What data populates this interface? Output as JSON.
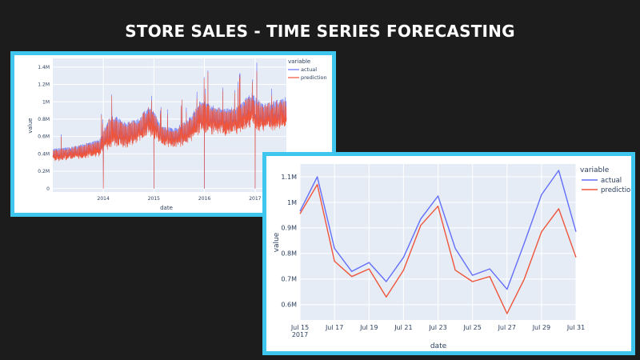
{
  "page": {
    "title": "STORE SALES - TIME SERIES FORECASTING"
  },
  "colors": {
    "background": "#1c1c1c",
    "frame": "#3ec6ef",
    "plot_bg": "#e5ecf6",
    "actual": "#636efa",
    "prediction": "#ef553b"
  },
  "chart_data": [
    {
      "type": "line",
      "xlabel": "date",
      "ylabel": "value",
      "x_range": [
        "2013-01-01",
        "2017-08-15"
      ],
      "ylim": [
        -40000,
        1500000
      ],
      "x_ticks": [
        {
          "value": "2014-01-01",
          "label": "2014"
        },
        {
          "value": "2015-01-01",
          "label": "2015"
        },
        {
          "value": "2016-01-01",
          "label": "2016"
        },
        {
          "value": "2017-01-01",
          "label": "2017"
        }
      ],
      "y_ticks": [
        {
          "value": 0,
          "label": "0"
        },
        {
          "value": 200000,
          "label": "0.2M"
        },
        {
          "value": 400000,
          "label": "0.4M"
        },
        {
          "value": 600000,
          "label": "0.6M"
        },
        {
          "value": 800000,
          "label": "0.8M"
        },
        {
          "value": 1000000,
          "label": "1M"
        },
        {
          "value": 1200000,
          "label": "1.2M"
        },
        {
          "value": 1400000,
          "label": "1.4M"
        }
      ],
      "grid": true,
      "legend": {
        "title": "variable",
        "position": "right"
      },
      "series": [
        {
          "name": "actual",
          "color": "#636efa"
        },
        {
          "name": "prediction",
          "color": "#ef553b"
        }
      ],
      "trend": {
        "x": [
          "2013-01-01",
          "2013-06-01",
          "2013-12-01",
          "2014-03-01",
          "2014-06-01",
          "2014-09-01",
          "2014-12-01",
          "2015-03-01",
          "2015-06-01",
          "2015-09-01",
          "2015-12-01",
          "2016-03-01",
          "2016-06-01",
          "2016-09-01",
          "2016-12-01",
          "2017-03-01",
          "2017-06-01",
          "2017-08-15"
        ],
        "low": [
          300000,
          320000,
          360000,
          430000,
          420000,
          470000,
          560000,
          480000,
          440000,
          480000,
          620000,
          600000,
          580000,
          600000,
          660000,
          640000,
          640000,
          650000
        ],
        "high": [
          470000,
          500000,
          580000,
          900000,
          800000,
          820000,
          1000000,
          740000,
          720000,
          820000,
          1050000,
          1000000,
          950000,
          980000,
          1150000,
          1000000,
          1050000,
          1100000
        ]
      },
      "drops": [
        "2014-01-01",
        "2015-01-01",
        "2016-01-01",
        "2017-01-01"
      ]
    },
    {
      "type": "line",
      "xlabel": "date",
      "ylabel": "value",
      "x_range": [
        "2017-07-15",
        "2017-07-31"
      ],
      "ylim": [
        540000,
        1150000
      ],
      "x_ticks": [
        {
          "value": "2017-07-15",
          "label": "Jul 15",
          "sublabel": "2017"
        },
        {
          "value": "2017-07-17",
          "label": "Jul 17"
        },
        {
          "value": "2017-07-19",
          "label": "Jul 19"
        },
        {
          "value": "2017-07-21",
          "label": "Jul 21"
        },
        {
          "value": "2017-07-23",
          "label": "Jul 23"
        },
        {
          "value": "2017-07-25",
          "label": "Jul 25"
        },
        {
          "value": "2017-07-27",
          "label": "Jul 27"
        },
        {
          "value": "2017-07-29",
          "label": "Jul 29"
        },
        {
          "value": "2017-07-31",
          "label": "Jul 31"
        }
      ],
      "y_ticks": [
        {
          "value": 600000,
          "label": "0.6M"
        },
        {
          "value": 700000,
          "label": "0.7M"
        },
        {
          "value": 800000,
          "label": "0.8M"
        },
        {
          "value": 900000,
          "label": "0.9M"
        },
        {
          "value": 1000000,
          "label": "1M"
        },
        {
          "value": 1100000,
          "label": "1.1M"
        }
      ],
      "grid": true,
      "legend": {
        "title": "variable",
        "position": "right"
      },
      "x": [
        "2017-07-15",
        "2017-07-16",
        "2017-07-17",
        "2017-07-18",
        "2017-07-19",
        "2017-07-20",
        "2017-07-21",
        "2017-07-22",
        "2017-07-23",
        "2017-07-24",
        "2017-07-25",
        "2017-07-26",
        "2017-07-27",
        "2017-07-28",
        "2017-07-29",
        "2017-07-30",
        "2017-07-31"
      ],
      "series": [
        {
          "name": "actual",
          "color": "#636efa",
          "values": [
            965000,
            1100000,
            820000,
            730000,
            765000,
            690000,
            785000,
            935000,
            1025000,
            820000,
            715000,
            740000,
            660000,
            840000,
            1030000,
            1125000,
            885000
          ]
        },
        {
          "name": "prediction",
          "color": "#ef553b",
          "values": [
            955000,
            1070000,
            770000,
            710000,
            740000,
            630000,
            735000,
            910000,
            985000,
            735000,
            690000,
            710000,
            565000,
            700000,
            885000,
            975000,
            785000
          ]
        }
      ]
    }
  ]
}
